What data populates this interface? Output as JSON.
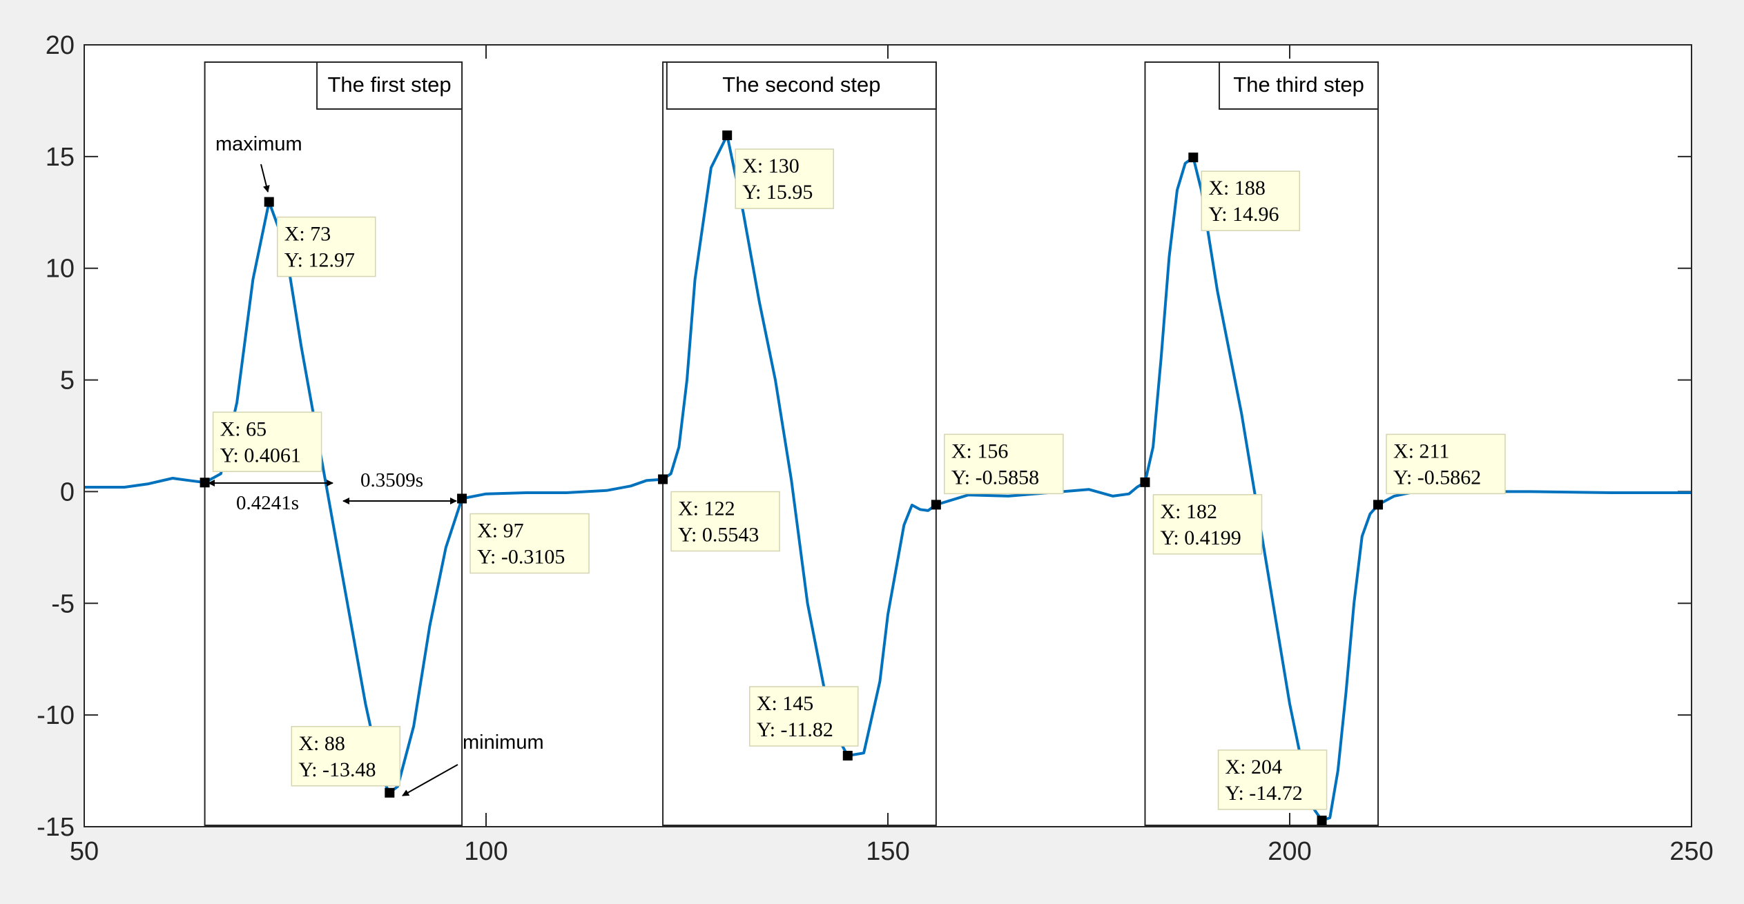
{
  "chart_data": {
    "type": "line",
    "title": "",
    "xlabel": "",
    "ylabel": "",
    "xlim": [
      50,
      250
    ],
    "ylim": [
      -15,
      20
    ],
    "xticks": [
      "50",
      "100",
      "150",
      "200",
      "250"
    ],
    "yticks": [
      "-15",
      "-10",
      "-5",
      "0",
      "5",
      "10",
      "15",
      "20"
    ],
    "grid": false,
    "line_color": "#0072BD",
    "x": [
      50,
      55,
      58,
      61,
      63,
      65,
      67,
      69,
      71,
      73,
      75,
      77,
      79,
      81,
      83,
      85,
      87,
      88,
      89,
      91,
      93,
      95,
      97,
      100,
      105,
      110,
      115,
      118,
      120,
      122,
      123,
      124,
      125,
      126,
      128,
      130,
      132,
      134,
      136,
      138,
      140,
      143,
      145,
      147,
      149,
      150,
      152,
      153,
      154,
      155,
      156,
      160,
      165,
      170,
      175,
      178,
      180,
      181,
      182,
      183,
      184,
      185,
      186,
      187,
      188,
      189,
      191,
      194,
      197,
      200,
      202,
      203,
      204,
      205,
      206,
      207,
      208,
      209,
      210,
      211,
      213,
      215,
      220,
      230,
      240,
      250
    ],
    "y": [
      0.2,
      0.2,
      0.35,
      0.6,
      0.5,
      0.41,
      0.8,
      4.0,
      9.5,
      12.97,
      11.0,
      6.5,
      2.5,
      -1.5,
      -5.5,
      -9.5,
      -12.8,
      -13.48,
      -13.2,
      -10.5,
      -6.0,
      -2.5,
      -0.31,
      -0.1,
      -0.05,
      -0.05,
      0.05,
      0.25,
      0.5,
      0.55,
      0.8,
      2.0,
      5.0,
      9.5,
      14.5,
      15.95,
      12.5,
      8.5,
      5.0,
      0.5,
      -5.0,
      -10.5,
      -11.82,
      -11.7,
      -8.5,
      -5.5,
      -1.5,
      -0.6,
      -0.8,
      -0.85,
      -0.59,
      -0.15,
      -0.2,
      -0.05,
      0.1,
      -0.2,
      -0.1,
      0.2,
      0.42,
      2.0,
      6.0,
      10.5,
      13.5,
      14.7,
      14.96,
      13.5,
      9.0,
      3.5,
      -3.0,
      -9.5,
      -13.0,
      -14.2,
      -14.72,
      -14.6,
      -12.5,
      -9.0,
      -5.0,
      -2.0,
      -1.0,
      -0.59,
      -0.2,
      -0.05,
      0.0,
      0.0,
      -0.05,
      -0.05
    ],
    "data_tips": [
      {
        "x": 65,
        "y": 0.4061,
        "lines": [
          "X: 65",
          "Y: 0.4061"
        ]
      },
      {
        "x": 73,
        "y": 12.97,
        "lines": [
          "X: 73",
          "Y: 12.97"
        ]
      },
      {
        "x": 88,
        "y": -13.48,
        "lines": [
          "X: 88",
          "Y: -13.48"
        ]
      },
      {
        "x": 97,
        "y": -0.3105,
        "lines": [
          "X: 97",
          "Y: -0.3105"
        ]
      },
      {
        "x": 122,
        "y": 0.5543,
        "lines": [
          "X: 122",
          "Y: 0.5543"
        ]
      },
      {
        "x": 130,
        "y": 15.95,
        "lines": [
          "X: 130",
          "Y: 15.95"
        ]
      },
      {
        "x": 145,
        "y": -11.82,
        "lines": [
          "X: 145",
          "Y: -11.82"
        ]
      },
      {
        "x": 156,
        "y": -0.5858,
        "lines": [
          "X: 156",
          "Y: -0.5858"
        ]
      },
      {
        "x": 182,
        "y": 0.4199,
        "lines": [
          "X: 182",
          "Y: 0.4199"
        ]
      },
      {
        "x": 188,
        "y": 14.96,
        "lines": [
          "X: 188",
          "Y: 14.96"
        ]
      },
      {
        "x": 204,
        "y": -14.72,
        "lines": [
          "X: 204",
          "Y: -14.72"
        ]
      },
      {
        "x": 211,
        "y": -0.5862,
        "lines": [
          "X: 211",
          "Y: -0.5862"
        ]
      }
    ],
    "steps": [
      {
        "label": "The first step",
        "x_start": 65,
        "x_end": 97
      },
      {
        "label": "The second step",
        "x_start": 122,
        "x_end": 156
      },
      {
        "label": "The third step",
        "x_start": 182,
        "x_end": 211
      }
    ],
    "annotations": {
      "maximum": "maximum",
      "minimum": "minimum",
      "rise_duration": "0.4241s",
      "fall_duration": "0.3509s"
    }
  }
}
